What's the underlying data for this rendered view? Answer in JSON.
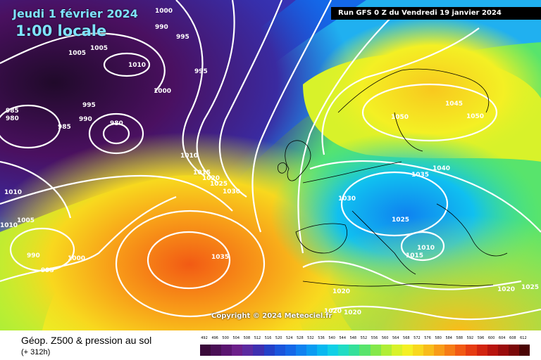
{
  "map": {
    "date_line": "Jeudi 1 février 2024",
    "time_line": "1:00 locale",
    "run_info": "Run GFS 0 Z du Vendredi 19 janvier 2024",
    "copyright": "Copyright © 2024 Meteociel.fr",
    "pressure_labels": [
      "1000",
      "990",
      "995",
      "1005",
      "1010",
      "995",
      "985",
      "980",
      "995",
      "990",
      "985",
      "980",
      "1000",
      "1005",
      "1010",
      "1015",
      "1020",
      "1025",
      "1030",
      "1010",
      "1005",
      "1010",
      "990",
      "995",
      "1000",
      "1035",
      "1050",
      "1045",
      "1050",
      "1035",
      "1040",
      "1030",
      "1025",
      "1015",
      "1010",
      "1020",
      "1020",
      "1020",
      "1020",
      "1025"
    ]
  },
  "footer": {
    "product": "Géop. Z500 & pression au sol",
    "lead_time": "(+ 312h)"
  },
  "legend": {
    "ticks": [
      "492",
      "496",
      "500",
      "504",
      "508",
      "512",
      "516",
      "520",
      "524",
      "528",
      "532",
      "536",
      "540",
      "544",
      "548",
      "552",
      "556",
      "560",
      "564",
      "568",
      "572",
      "576",
      "580",
      "584",
      "588",
      "592",
      "596",
      "600",
      "604",
      "608",
      "612"
    ],
    "colors": [
      "#3a0a3a",
      "#4a0f55",
      "#5a1570",
      "#6c1f8a",
      "#5b2aa0",
      "#3e2fb0",
      "#2340c8",
      "#1a55dc",
      "#1468e8",
      "#0f82f0",
      "#0a9cf2",
      "#08b8f0",
      "#10d0e6",
      "#20dcc4",
      "#34e09a",
      "#58e46c",
      "#84e84a",
      "#b0ee36",
      "#d8f22a",
      "#f4f024",
      "#f8d81e",
      "#f8bc1a",
      "#f89c18",
      "#f67c16",
      "#f25a14",
      "#e63c12",
      "#d22410",
      "#b8140e",
      "#9a0c0c",
      "#7a0808",
      "#4a0404"
    ],
    "colors_note": ""
  }
}
